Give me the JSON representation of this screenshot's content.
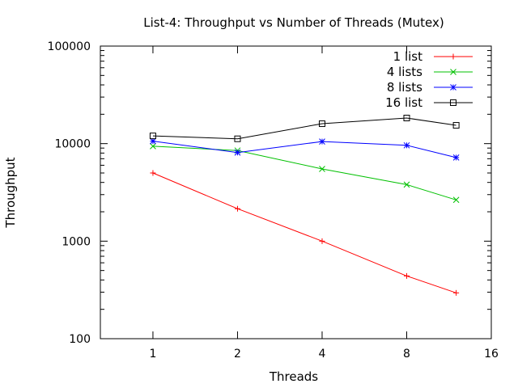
{
  "chart_data": {
    "type": "line",
    "title": "List-4: Throughput vs Number of Threads (Mutex)",
    "xlabel": "Threads",
    "ylabel": "Throughput",
    "x_scale": "log2",
    "y_scale": "log10",
    "xlim": [
      0.65,
      16
    ],
    "ylim": [
      100,
      100000
    ],
    "x_ticks": [
      1,
      2,
      4,
      8,
      16
    ],
    "x_tick_labels": [
      "1",
      "2",
      "4",
      "8",
      "16"
    ],
    "y_ticks": [
      100,
      1000,
      10000,
      100000
    ],
    "y_tick_labels": [
      "100",
      "1000",
      "10000",
      "100000"
    ],
    "grid": false,
    "legend_position": "top-right",
    "x": [
      1,
      2,
      4,
      8,
      12
    ],
    "series": [
      {
        "name": "1 list",
        "color": "#ff0000",
        "marker": "plus",
        "values": [
          5000,
          2150,
          1000,
          440,
          295
        ]
      },
      {
        "name": "4 lists",
        "color": "#00c000",
        "marker": "cross",
        "values": [
          9400,
          8500,
          5500,
          3800,
          2650
        ]
      },
      {
        "name": "8 lists",
        "color": "#0000ff",
        "marker": "asterisk",
        "values": [
          10600,
          8100,
          10500,
          9600,
          7200
        ]
      },
      {
        "name": "16 list",
        "color": "#000000",
        "marker": "square",
        "values": [
          12000,
          11200,
          16000,
          18300,
          15400
        ]
      }
    ]
  }
}
